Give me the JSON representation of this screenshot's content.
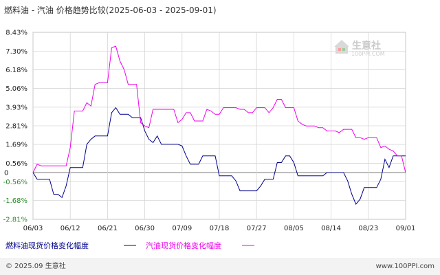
{
  "chart_data": {
    "type": "line",
    "title": "燃料油 - 汽油 价格趋势比较(2025-06-03 - 2025-09-01)",
    "y_ticks": [
      "8.43%",
      "7.30%",
      "6.18%",
      "5.06%",
      "3.93%",
      "2.81%",
      "1.69%",
      "0.56%",
      "0",
      "-0.56%",
      "-1.68%",
      "-2.81%"
    ],
    "y_tick_values": [
      8.43,
      7.3,
      6.18,
      5.06,
      3.93,
      2.81,
      1.69,
      0.56,
      0,
      -0.56,
      -1.68,
      -2.81
    ],
    "ylim": [
      -2.81,
      8.43
    ],
    "x_ticks": [
      "06/03",
      "06/12",
      "06/21",
      "06/30",
      "07/09",
      "07/18",
      "07/27",
      "08/05",
      "08/14",
      "08/23",
      "09/01"
    ],
    "xlim": [
      "06/03",
      "09/01"
    ],
    "grid": true,
    "legend_position": "bottom-left",
    "series": [
      {
        "name": "燃料油现货价格变化幅度",
        "color": "#00008b",
        "points": [
          [
            "06/03",
            0
          ],
          [
            "06/04",
            -0.4
          ],
          [
            "06/05",
            -0.4
          ],
          [
            "06/06",
            -0.4
          ],
          [
            "06/07",
            -0.4
          ],
          [
            "06/08",
            -1.3
          ],
          [
            "06/09",
            -1.3
          ],
          [
            "06/10",
            -1.5
          ],
          [
            "06/11",
            -0.8
          ],
          [
            "06/12",
            0.3
          ],
          [
            "06/13",
            0.3
          ],
          [
            "06/14",
            0.3
          ],
          [
            "06/15",
            0.3
          ],
          [
            "06/16",
            1.7
          ],
          [
            "06/17",
            2.0
          ],
          [
            "06/18",
            2.2
          ],
          [
            "06/19",
            2.2
          ],
          [
            "06/20",
            2.2
          ],
          [
            "06/21",
            2.2
          ],
          [
            "06/22",
            3.6
          ],
          [
            "06/23",
            3.9
          ],
          [
            "06/24",
            3.5
          ],
          [
            "06/25",
            3.5
          ],
          [
            "06/26",
            3.5
          ],
          [
            "06/27",
            3.3
          ],
          [
            "06/28",
            3.3
          ],
          [
            "06/29",
            3.3
          ],
          [
            "06/30",
            2.5
          ],
          [
            "07/01",
            2.0
          ],
          [
            "07/02",
            1.8
          ],
          [
            "07/03",
            2.2
          ],
          [
            "07/04",
            1.7
          ],
          [
            "07/05",
            1.7
          ],
          [
            "07/06",
            1.7
          ],
          [
            "07/07",
            1.7
          ],
          [
            "07/08",
            1.7
          ],
          [
            "07/09",
            1.6
          ],
          [
            "07/10",
            1.0
          ],
          [
            "07/11",
            0.5
          ],
          [
            "07/12",
            0.5
          ],
          [
            "07/13",
            0.5
          ],
          [
            "07/14",
            1.0
          ],
          [
            "07/15",
            1.0
          ],
          [
            "07/16",
            1.0
          ],
          [
            "07/17",
            1.0
          ],
          [
            "07/18",
            -0.2
          ],
          [
            "07/19",
            -0.2
          ],
          [
            "07/20",
            -0.2
          ],
          [
            "07/21",
            -0.2
          ],
          [
            "07/22",
            -0.5
          ],
          [
            "07/23",
            -1.1
          ],
          [
            "07/24",
            -1.1
          ],
          [
            "07/25",
            -1.1
          ],
          [
            "07/26",
            -1.1
          ],
          [
            "07/27",
            -1.1
          ],
          [
            "07/28",
            -0.8
          ],
          [
            "07/29",
            -0.4
          ],
          [
            "07/30",
            -0.4
          ],
          [
            "07/31",
            -0.4
          ],
          [
            "08/01",
            0.6
          ],
          [
            "08/02",
            0.6
          ],
          [
            "08/03",
            1.0
          ],
          [
            "08/04",
            1.0
          ],
          [
            "08/05",
            0.6
          ],
          [
            "08/06",
            -0.2
          ],
          [
            "08/07",
            -0.2
          ],
          [
            "08/08",
            -0.2
          ],
          [
            "08/09",
            -0.2
          ],
          [
            "08/10",
            -0.2
          ],
          [
            "08/11",
            -0.2
          ],
          [
            "08/12",
            -0.2
          ],
          [
            "08/13",
            0
          ],
          [
            "08/14",
            0
          ],
          [
            "08/15",
            0
          ],
          [
            "08/16",
            0
          ],
          [
            "08/17",
            0
          ],
          [
            "08/18",
            -0.5
          ],
          [
            "08/19",
            -1.3
          ],
          [
            "08/20",
            -1.9
          ],
          [
            "08/21",
            -1.6
          ],
          [
            "08/22",
            -0.9
          ],
          [
            "08/23",
            -0.9
          ],
          [
            "08/24",
            -0.9
          ],
          [
            "08/25",
            -0.9
          ],
          [
            "08/26",
            -0.4
          ],
          [
            "08/27",
            0.8
          ],
          [
            "08/28",
            0.3
          ],
          [
            "08/29",
            1.0
          ],
          [
            "08/30",
            1.0
          ],
          [
            "08/31",
            1.0
          ],
          [
            "09/01",
            1.0
          ]
        ]
      },
      {
        "name": "汽油现货价格变化幅度",
        "color": "#ee00ee",
        "points": [
          [
            "06/03",
            0
          ],
          [
            "06/04",
            0.5
          ],
          [
            "06/05",
            0.4
          ],
          [
            "06/06",
            0.4
          ],
          [
            "06/07",
            0.4
          ],
          [
            "06/08",
            0.4
          ],
          [
            "06/09",
            0.4
          ],
          [
            "06/10",
            0.4
          ],
          [
            "06/11",
            0.4
          ],
          [
            "06/12",
            1.5
          ],
          [
            "06/13",
            3.7
          ],
          [
            "06/14",
            3.7
          ],
          [
            "06/15",
            3.7
          ],
          [
            "06/16",
            4.2
          ],
          [
            "06/17",
            4.0
          ],
          [
            "06/18",
            5.3
          ],
          [
            "06/19",
            5.4
          ],
          [
            "06/20",
            5.4
          ],
          [
            "06/21",
            5.4
          ],
          [
            "06/22",
            7.5
          ],
          [
            "06/23",
            7.6
          ],
          [
            "06/24",
            6.7
          ],
          [
            "06/25",
            6.2
          ],
          [
            "06/26",
            5.3
          ],
          [
            "06/27",
            5.3
          ],
          [
            "06/28",
            5.3
          ],
          [
            "06/29",
            3.0
          ],
          [
            "06/30",
            2.8
          ],
          [
            "07/01",
            2.7
          ],
          [
            "07/02",
            3.8
          ],
          [
            "07/03",
            3.8
          ],
          [
            "07/04",
            3.8
          ],
          [
            "07/05",
            3.8
          ],
          [
            "07/06",
            3.8
          ],
          [
            "07/07",
            3.8
          ],
          [
            "07/08",
            3.0
          ],
          [
            "07/09",
            3.2
          ],
          [
            "07/10",
            3.6
          ],
          [
            "07/11",
            3.6
          ],
          [
            "07/12",
            3.1
          ],
          [
            "07/13",
            3.1
          ],
          [
            "07/14",
            3.1
          ],
          [
            "07/15",
            3.8
          ],
          [
            "07/16",
            3.7
          ],
          [
            "07/17",
            3.5
          ],
          [
            "07/18",
            3.5
          ],
          [
            "07/19",
            3.9
          ],
          [
            "07/20",
            3.9
          ],
          [
            "07/21",
            3.9
          ],
          [
            "07/22",
            3.9
          ],
          [
            "07/23",
            3.8
          ],
          [
            "07/24",
            3.8
          ],
          [
            "07/25",
            3.6
          ],
          [
            "07/26",
            3.6
          ],
          [
            "07/27",
            3.9
          ],
          [
            "07/28",
            3.9
          ],
          [
            "07/29",
            3.9
          ],
          [
            "07/30",
            3.6
          ],
          [
            "07/31",
            3.9
          ],
          [
            "08/01",
            4.4
          ],
          [
            "08/02",
            4.4
          ],
          [
            "08/03",
            3.9
          ],
          [
            "08/04",
            3.9
          ],
          [
            "08/05",
            3.9
          ],
          [
            "08/06",
            3.1
          ],
          [
            "08/07",
            2.9
          ],
          [
            "08/08",
            2.8
          ],
          [
            "08/09",
            2.8
          ],
          [
            "08/10",
            2.8
          ],
          [
            "08/11",
            2.7
          ],
          [
            "08/12",
            2.7
          ],
          [
            "08/13",
            2.5
          ],
          [
            "08/14",
            2.5
          ],
          [
            "08/15",
            2.5
          ],
          [
            "08/16",
            2.4
          ],
          [
            "08/17",
            2.6
          ],
          [
            "08/18",
            2.6
          ],
          [
            "08/19",
            2.6
          ],
          [
            "08/20",
            2.1
          ],
          [
            "08/21",
            2.1
          ],
          [
            "08/22",
            2.0
          ],
          [
            "08/23",
            2.1
          ],
          [
            "08/24",
            2.1
          ],
          [
            "08/25",
            2.1
          ],
          [
            "08/26",
            1.5
          ],
          [
            "08/27",
            1.6
          ],
          [
            "08/28",
            1.4
          ],
          [
            "08/29",
            1.3
          ],
          [
            "08/30",
            1.0
          ],
          [
            "08/31",
            1.0
          ],
          [
            "09/01",
            0
          ]
        ]
      }
    ]
  },
  "logo": {
    "name": "生意社",
    "sub": "100PPI.COM"
  },
  "footer": {
    "copyright": "© 2025.09 生意社",
    "url": "www.100PPI.com"
  },
  "colors": {
    "background": "#ffffff",
    "plot_background": "#ffffff",
    "grid": "#d6d6d6",
    "axis": "#999999",
    "footer_bg": "#f3f3f3",
    "logo_house": "#d9d9d9"
  }
}
